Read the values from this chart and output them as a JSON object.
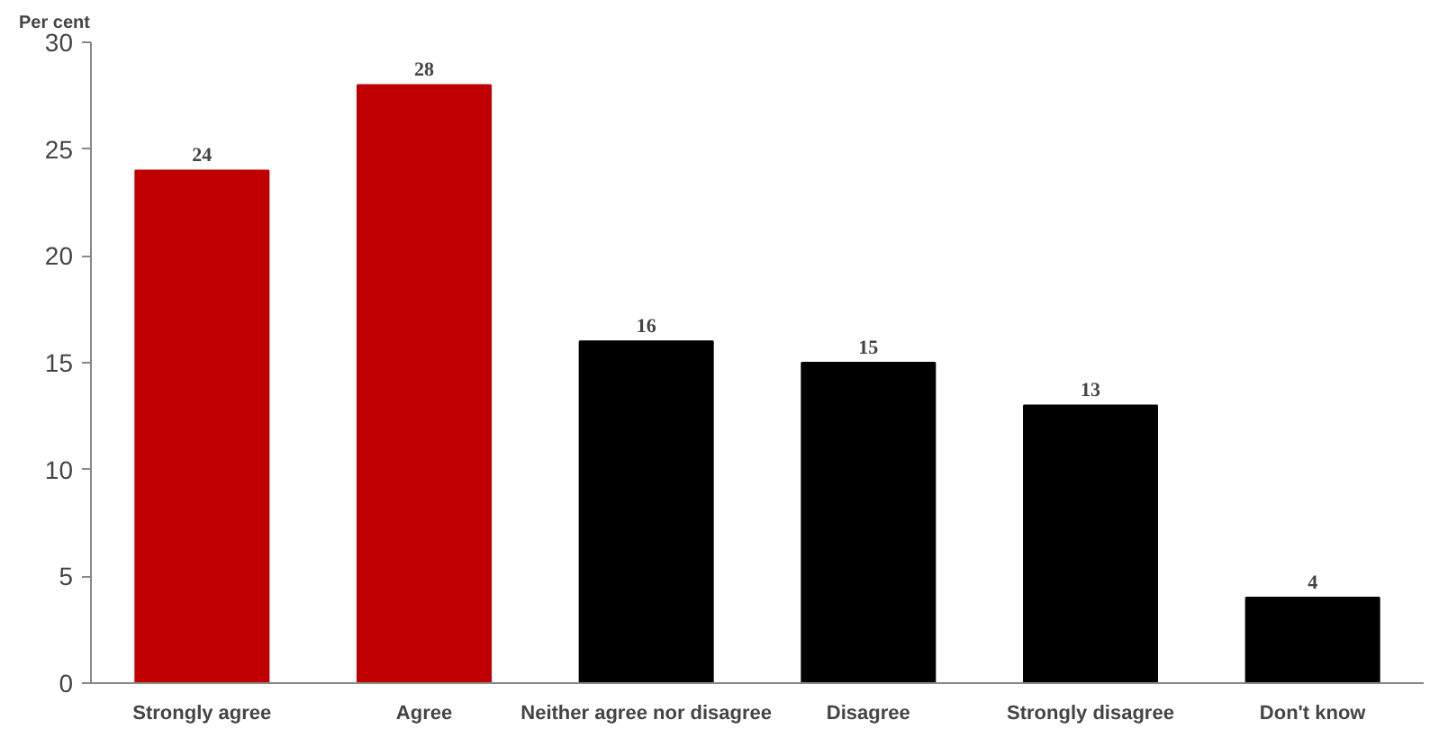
{
  "chart_data": {
    "type": "bar",
    "ylabel": "Per cent",
    "categories": [
      "Strongly agree",
      "Agree",
      "Neither agree nor disagree",
      "Disagree",
      "Strongly disagree",
      "Don't know"
    ],
    "values": [
      24,
      28,
      16,
      15,
      13,
      4
    ],
    "colors": [
      "#c00000",
      "#c00000",
      "#000000",
      "#000000",
      "#000000",
      "#000000"
    ],
    "ylim": [
      0,
      30
    ],
    "yticks": [
      0,
      5,
      10,
      15,
      20,
      25,
      30
    ],
    "grid": false,
    "data_labels": true
  }
}
